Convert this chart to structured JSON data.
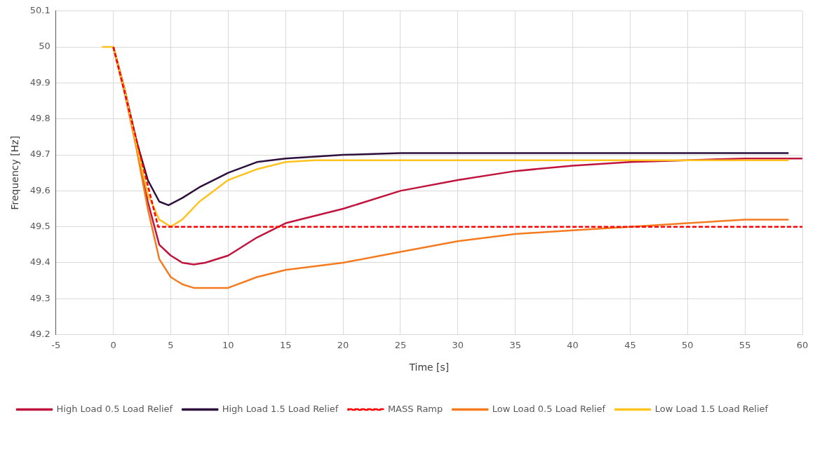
{
  "chart_data": {
    "type": "line",
    "xlabel": "Time [s]",
    "ylabel": "Frequency [Hz]",
    "xlim": [
      -5,
      60
    ],
    "xticks": [
      -5,
      0,
      5,
      10,
      15,
      20,
      25,
      30,
      35,
      40,
      45,
      50,
      55,
      60
    ],
    "ylim": [
      49.2,
      50.1
    ],
    "yticks": [
      49.2,
      49.3,
      49.4,
      49.5,
      49.6,
      49.7,
      49.8,
      49.9,
      50,
      50.1
    ],
    "grid": true,
    "legend": "bottom",
    "marker": "none",
    "series": [
      {
        "name": "High Load 0.5 Load Relief",
        "color": "#c0143c",
        "x": [
          0,
          1,
          2,
          3,
          4,
          5,
          6,
          7,
          8,
          10,
          12.5,
          15,
          17.5,
          20,
          25,
          30,
          35,
          40,
          45,
          50,
          55,
          60
        ],
        "values": [
          50,
          49.88,
          49.73,
          49.57,
          49.45,
          49.42,
          49.4,
          49.395,
          49.4,
          49.42,
          49.47,
          49.51,
          49.53,
          49.55,
          49.6,
          49.63,
          49.655,
          49.67,
          49.68,
          49.685,
          49.69,
          49.69
        ]
      },
      {
        "name": "High Load 1.5 Load Relief",
        "color": "#2d0f3c",
        "x": [
          0,
          1,
          2,
          3,
          4,
          4.8,
          6,
          7.5,
          10,
          12.5,
          15,
          20,
          25,
          30,
          40,
          50,
          58.8
        ],
        "values": [
          50,
          49.88,
          49.74,
          49.63,
          49.57,
          49.56,
          49.58,
          49.61,
          49.65,
          49.68,
          49.69,
          49.7,
          49.705,
          49.705,
          49.705,
          49.705,
          49.705
        ]
      },
      {
        "name": "MASS Ramp",
        "color": "#ff0000",
        "line_style": "dashed",
        "x": [
          0,
          3.9,
          60
        ],
        "values": [
          50,
          49.5,
          49.5
        ]
      },
      {
        "name": "Low Load 0.5 Load Relief",
        "color": "#f47b20",
        "x": [
          0,
          1,
          2,
          3,
          4,
          5,
          6,
          7,
          8,
          10,
          12.5,
          15,
          20,
          25,
          30,
          35,
          40,
          45,
          50,
          55,
          58.8
        ],
        "values": [
          50,
          49.87,
          49.72,
          49.55,
          49.41,
          49.36,
          49.34,
          49.33,
          49.33,
          49.33,
          49.36,
          49.38,
          49.4,
          49.43,
          49.46,
          49.48,
          49.49,
          49.5,
          49.51,
          49.52,
          49.52
        ]
      },
      {
        "name": "Low Load 1.5 Load Relief",
        "color": "#ffc21e",
        "x": [
          -1,
          0,
          1,
          2,
          3,
          4,
          5,
          6,
          7.5,
          10,
          12.5,
          15,
          17.5,
          20,
          30,
          40,
          50,
          58.8
        ],
        "values": [
          50,
          50,
          49.88,
          49.73,
          49.59,
          49.52,
          49.5,
          49.52,
          49.57,
          49.63,
          49.66,
          49.68,
          49.685,
          49.685,
          49.685,
          49.685,
          49.685,
          49.685
        ]
      }
    ]
  }
}
